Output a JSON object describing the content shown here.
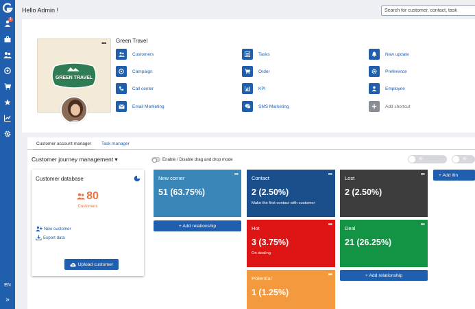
{
  "header": {
    "greeting": "Hello Admin !",
    "search_placeholder": "Search for customer, contact, task"
  },
  "sidebar": {
    "notification_count": "1",
    "icons": [
      "user-icon",
      "briefcase-icon",
      "users-icon",
      "target-icon",
      "cart-icon",
      "star-icon",
      "chart-icon",
      "gear-icon"
    ],
    "language": "EN",
    "expand": "»"
  },
  "profile": {
    "company_name": "Green Travel",
    "logo_text": "GREEN TRAVEL",
    "more": "•••"
  },
  "shortcuts": [
    {
      "label": "Customers",
      "icon": "users-icon"
    },
    {
      "label": "Tasks",
      "icon": "list-icon"
    },
    {
      "label": "New update",
      "icon": "bell-icon"
    },
    {
      "label": "Campaign",
      "icon": "target-icon"
    },
    {
      "label": "Order",
      "icon": "cart-icon"
    },
    {
      "label": "Preference",
      "icon": "gear-icon"
    },
    {
      "label": "Call center",
      "icon": "phone-icon"
    },
    {
      "label": "KPI",
      "icon": "bar-chart-icon"
    },
    {
      "label": "Employee",
      "icon": "person-icon"
    },
    {
      "label": "Email Marketing",
      "icon": "envelope-icon"
    },
    {
      "label": "SMS Marketing",
      "icon": "chat-icon"
    },
    {
      "label": "Add shortcut",
      "icon": "plus-icon"
    }
  ],
  "tabs": {
    "customer_account_manager": "Customer account manager",
    "task_manager": "Task manager"
  },
  "journey": {
    "title": "Customer journey management ▾",
    "drag_toggle_label": "Enable / Disable drag and drop mode",
    "filter_all_1": "All",
    "filter_all_2": "All",
    "add_itinerary": "+ Add itin"
  },
  "customer_database": {
    "title": "Customer database",
    "count": "80",
    "count_label": "Customers",
    "new_customer": "New customer",
    "export_data": "Export data",
    "upload_button": "Upload customer"
  },
  "stages": {
    "new_corner": {
      "name": "New corner",
      "value": "51  (63.75%)",
      "color": "#3a86b8"
    },
    "contact": {
      "name": "Contact",
      "value": "2  (2.50%)",
      "sub": "Make the first contact with customer",
      "color": "#1b4f8c"
    },
    "lost": {
      "name": "Lost",
      "value": "2  (2.50%)",
      "color": "#3d3d3d"
    },
    "hot": {
      "name": "Hot",
      "value": "3  (3.75%)",
      "sub": "On dealing",
      "color": "#dd1515"
    },
    "deal": {
      "name": "Deal",
      "value": "21  (26.25%)",
      "color": "#129444"
    },
    "potential": {
      "name": "Potential",
      "value": "1  (1.25%)",
      "color": "#f39a3f"
    },
    "more": "•••"
  },
  "buttons": {
    "add_relationship_1": "+ Add relationship",
    "add_relationship_2": "+ Add relationship"
  }
}
